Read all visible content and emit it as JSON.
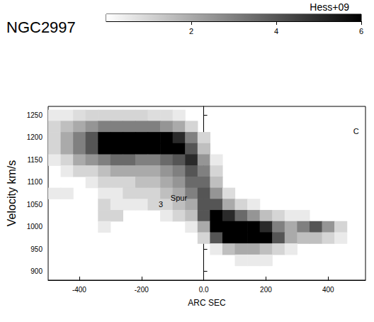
{
  "chart_data": {
    "type": "heatmap",
    "title": "NGC2997",
    "subtitle": "Hess+09",
    "xlabel": "ARC SEC",
    "ylabel": "Velocity km/s",
    "xlim": [
      -500,
      520
    ],
    "xticks": [
      -400,
      -200,
      {
        "value": 0,
        "label": "0.0"
      },
      200,
      400
    ],
    "ylim": [
      880,
      1270
    ],
    "yticks": [
      900,
      950,
      1000,
      1050,
      1100,
      1150,
      1200,
      1250
    ],
    "grid": false,
    "colorbar": {
      "lim": [
        0,
        6
      ],
      "ticks": [
        2,
        4,
        6
      ]
    },
    "map": {
      "x": [
        -480,
        -440,
        -400,
        -360,
        -320,
        -280,
        -240,
        -200,
        -160,
        -120,
        -80,
        -40,
        0,
        40,
        80,
        120,
        160,
        200,
        240,
        280,
        320,
        360,
        400,
        440,
        480
      ],
      "y": [
        1250,
        1225,
        1200,
        1175,
        1150,
        1125,
        1100,
        1075,
        1050,
        1025,
        1000,
        975,
        950,
        925
      ],
      "z": [
        [
          0.5,
          0.5,
          0.8,
          1,
          1,
          1,
          1,
          1,
          0.8,
          0.8,
          0.5,
          0,
          0,
          0,
          0,
          0,
          0,
          0,
          0,
          0,
          0,
          0,
          0,
          0,
          0
        ],
        [
          1,
          1.5,
          2,
          2.5,
          3,
          3,
          3,
          3,
          3,
          2.5,
          2,
          1,
          0,
          0,
          0,
          0,
          0,
          0,
          0,
          0,
          0,
          0,
          0,
          0,
          0
        ],
        [
          1,
          2,
          3,
          4,
          6,
          6,
          6,
          6,
          6,
          6,
          5,
          3,
          1,
          0,
          0,
          0,
          0,
          0,
          0,
          0,
          0,
          0,
          0,
          0,
          0
        ],
        [
          1,
          2,
          3,
          4,
          6,
          6,
          6,
          6,
          6,
          6,
          6,
          4,
          1.5,
          0,
          0,
          0,
          0,
          0,
          0,
          0,
          0,
          0,
          0,
          0,
          0
        ],
        [
          0.5,
          1,
          2,
          2.5,
          3,
          3.5,
          3.5,
          3,
          3,
          3.5,
          4,
          5,
          2.5,
          0.5,
          0,
          0,
          0,
          0,
          0,
          0,
          0,
          0,
          0,
          0,
          0
        ],
        [
          0,
          0.5,
          1,
          1,
          1.5,
          2,
          2,
          2,
          2,
          2.5,
          3,
          4,
          3,
          1,
          0,
          0,
          0,
          0,
          0,
          0,
          0,
          0,
          0,
          0,
          0
        ],
        [
          0,
          0,
          0,
          0.5,
          1,
          1,
          1,
          1.5,
          1.5,
          2,
          2.5,
          3.5,
          3.5,
          1.5,
          0,
          0,
          0,
          0,
          0,
          0,
          0,
          0,
          0,
          0,
          0
        ],
        [
          0.5,
          0.5,
          0,
          0,
          0.5,
          0.5,
          1,
          1,
          1,
          1.5,
          2,
          3,
          4,
          2.5,
          0.8,
          0,
          0,
          0,
          0,
          0,
          0,
          0,
          0,
          0,
          0
        ],
        [
          0,
          0,
          0,
          0,
          1,
          0.5,
          0.5,
          0.5,
          1,
          1,
          1.5,
          2,
          4,
          4,
          2,
          1,
          0.5,
          0,
          0,
          0,
          0,
          0,
          0,
          0,
          0
        ],
        [
          0,
          0,
          0,
          0,
          1,
          1,
          0,
          0,
          0,
          0.5,
          1,
          1.5,
          4,
          6,
          5,
          3.5,
          2.5,
          1.5,
          1,
          0.5,
          0.5,
          0,
          0,
          0,
          0
        ],
        [
          0,
          0,
          0,
          0,
          0.5,
          0,
          0,
          0,
          0,
          0,
          0,
          0.5,
          2,
          6,
          6,
          6,
          6,
          5,
          3,
          2,
          3,
          4,
          2.5,
          1,
          0
        ],
        [
          0,
          0,
          0,
          0,
          0,
          0,
          0,
          0,
          0,
          0,
          0,
          0,
          1,
          4,
          6,
          6,
          6,
          6,
          4,
          2,
          1.5,
          1.5,
          1,
          0.5,
          0
        ],
        [
          0,
          0,
          0,
          0,
          0,
          0,
          0,
          0,
          0,
          0,
          0,
          0,
          0,
          0.5,
          1.5,
          2,
          2,
          1.5,
          1,
          0.5,
          0,
          0,
          0,
          0,
          0
        ],
        [
          0,
          0,
          0,
          0,
          0,
          0,
          0,
          0,
          0,
          0,
          0,
          0,
          0,
          0,
          0,
          0.5,
          0.5,
          0.5,
          0,
          0,
          0,
          0,
          0,
          0,
          0
        ]
      ]
    },
    "annotations": [
      {
        "text": "3",
        "x": -138,
        "y": 1051
      },
      {
        "text": "Spur",
        "x": -80,
        "y": 1065
      },
      {
        "text": "C",
        "x": 490,
        "y": 1215
      }
    ]
  }
}
